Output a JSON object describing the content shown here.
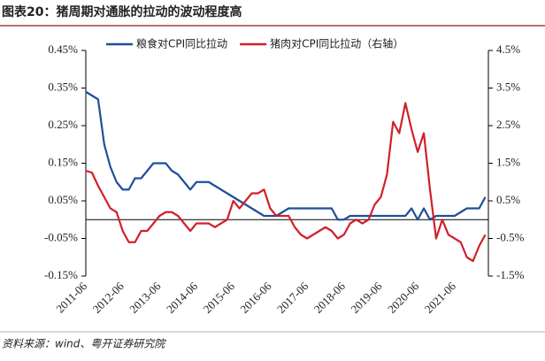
{
  "title": "图表20：猪周期对通胀的拉动的波动程度高",
  "source": "资料来源：wind、粤开证券研究院",
  "chart_data": {
    "type": "line",
    "x": [
      "2011-06",
      "2011-08",
      "2011-10",
      "2011-12",
      "2012-02",
      "2012-04",
      "2012-06",
      "2012-08",
      "2012-10",
      "2012-12",
      "2013-02",
      "2013-04",
      "2013-06",
      "2013-08",
      "2013-10",
      "2013-12",
      "2014-02",
      "2014-04",
      "2014-06",
      "2014-08",
      "2014-10",
      "2014-12",
      "2015-02",
      "2015-04",
      "2015-06",
      "2015-08",
      "2015-10",
      "2015-12",
      "2016-02",
      "2016-04",
      "2016-06",
      "2016-08",
      "2016-10",
      "2016-12",
      "2017-02",
      "2017-04",
      "2017-06",
      "2017-08",
      "2017-10",
      "2017-12",
      "2018-02",
      "2018-04",
      "2018-06",
      "2018-08",
      "2018-10",
      "2018-12",
      "2019-02",
      "2019-04",
      "2019-06",
      "2019-08",
      "2019-10",
      "2019-12",
      "2020-02",
      "2020-04",
      "2020-06",
      "2020-08",
      "2020-10",
      "2020-12",
      "2021-02",
      "2021-04",
      "2021-06",
      "2021-08",
      "2021-10",
      "2021-12",
      "2022-02",
      "2022-04"
    ],
    "series": [
      {
        "name": "粮食对CPI同比拉动",
        "color": "#1f4e9c",
        "values": [
          0.34,
          0.33,
          0.32,
          0.2,
          0.14,
          0.1,
          0.08,
          0.08,
          0.11,
          0.11,
          0.13,
          0.15,
          0.15,
          0.15,
          0.13,
          0.12,
          0.1,
          0.08,
          0.1,
          0.1,
          0.1,
          0.09,
          0.08,
          0.07,
          0.06,
          0.05,
          0.04,
          0.03,
          0.02,
          0.01,
          0.01,
          0.01,
          0.02,
          0.03,
          0.03,
          0.03,
          0.03,
          0.03,
          0.03,
          0.03,
          0.03,
          0,
          0,
          0.01,
          0.01,
          0.01,
          0.01,
          0.01,
          0.01,
          0.01,
          0.01,
          0.01,
          0.01,
          0.03,
          0,
          0.03,
          0,
          0.01,
          0.01,
          0.01,
          0.01,
          0.02,
          0.03,
          0.03,
          0.03,
          0.06
        ]
      },
      {
        "name": "猪肉对CPI同比拉动（右轴）",
        "color": "#d0202a",
        "axis": "y2",
        "values": [
          1.3,
          1.25,
          0.9,
          0.6,
          0.3,
          0.2,
          -0.3,
          -0.6,
          -0.6,
          -0.3,
          -0.3,
          -0.1,
          0.1,
          0.2,
          0.2,
          0.1,
          -0.1,
          -0.3,
          -0.1,
          -0.1,
          -0.1,
          -0.2,
          -0.1,
          0,
          0.5,
          0.3,
          0.5,
          0.7,
          0.7,
          0.8,
          0.3,
          0.1,
          0.1,
          0.1,
          -0.2,
          -0.4,
          -0.5,
          -0.4,
          -0.3,
          -0.2,
          -0.3,
          -0.5,
          -0.4,
          -0.1,
          0,
          -0.1,
          0,
          0.4,
          0.6,
          1.2,
          2.6,
          2.3,
          3.1,
          2.4,
          1.8,
          2.3,
          0.8,
          -0.5,
          0,
          -0.4,
          -0.5,
          -0.6,
          -1,
          -1.1,
          -0.7,
          -0.4
        ]
      }
    ],
    "xlim": [
      "2011-06",
      "2022-05"
    ],
    "xticks": [
      "2011-06",
      "2012-06",
      "2013-06",
      "2014-06",
      "2015-06",
      "2016-06",
      "2017-06",
      "2018-06",
      "2019-06",
      "2020-06",
      "2021-06"
    ],
    "ylim": [
      -0.15,
      0.45
    ],
    "yticks": [
      {
        "value": 0.45,
        "label": "0.45%"
      },
      {
        "value": 0.35,
        "label": "0.35%"
      },
      {
        "value": 0.25,
        "label": "0.25%"
      },
      {
        "value": 0.15,
        "label": "0.15%"
      },
      {
        "value": 0.05,
        "label": "0.05%"
      },
      {
        "value": -0.05,
        "label": "-0.05%"
      },
      {
        "value": -0.15,
        "label": "-0.15%"
      }
    ],
    "y2lim": [
      -1.5,
      4.5
    ],
    "y2ticks": [
      {
        "value": 4.5,
        "label": "4.5%"
      },
      {
        "value": 3.5,
        "label": "3.5%"
      },
      {
        "value": 2.5,
        "label": "2.5%"
      },
      {
        "value": 1.5,
        "label": "1.5%"
      },
      {
        "value": 0.5,
        "label": "0.5%"
      },
      {
        "value": -0.5,
        "label": "-0.5%"
      },
      {
        "value": -1.5,
        "label": "-1.5%"
      }
    ]
  }
}
